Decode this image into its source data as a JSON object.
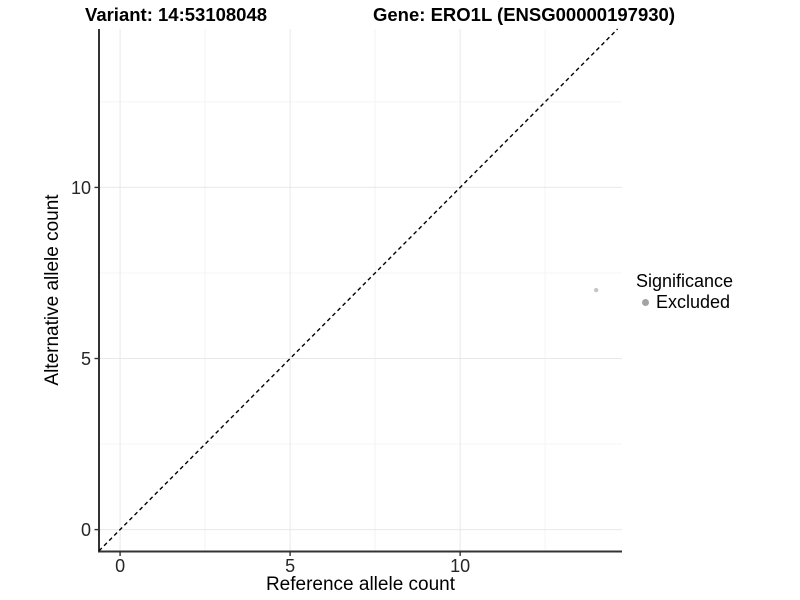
{
  "header": {
    "variant_title": "Variant: 14:53108048",
    "gene_title": "Gene: ERO1L (ENSG00000197930)"
  },
  "chart_data": {
    "type": "scatter",
    "xlabel": "Reference allele count",
    "ylabel": "Alternative allele count",
    "xlim": [
      -0.62,
      14.76
    ],
    "ylim": [
      -0.64,
      14.63
    ],
    "xticks": [
      0,
      5,
      10
    ],
    "yticks": [
      0,
      5,
      10
    ],
    "xticks_minor": [
      2.5,
      7.5,
      12.5
    ],
    "yticks_minor": [
      2.5,
      7.5,
      12.5
    ],
    "grid": "major+minor",
    "legend_position": "right",
    "series": [
      {
        "name": "Excluded",
        "points": [
          {
            "x": 14,
            "y": 7
          }
        ],
        "color": "#c6c6c6",
        "point_radius": 2.2
      }
    ],
    "reference_line": {
      "type": "identity y=x",
      "style": "dashed",
      "color": "#000000"
    }
  },
  "legend": {
    "title": "Significance",
    "items": [
      {
        "label": "Excluded",
        "key_color": "#a3a3a3"
      }
    ]
  },
  "colors": {
    "background": "#ffffff",
    "axis_line": "#333333",
    "grid_major": "#e8e8e8",
    "grid_minor": "#f4f4f4",
    "tick_text": "#262626",
    "ref_line": "#000000"
  }
}
